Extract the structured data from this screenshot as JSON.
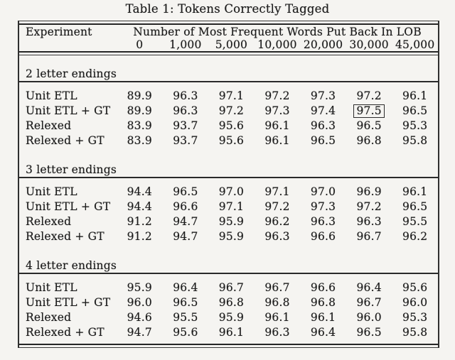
{
  "title": "Table 1: Tokens Correctly Tagged",
  "table": {
    "experiment_header": "Experiment",
    "span_header": "Number of Most Frequent Words Put Back In LOB",
    "columns": [
      "0",
      "1,000",
      "5,000",
      "10,000",
      "20,000",
      "30,000",
      "45,000"
    ],
    "highlight": {
      "description": "value enclosed in a box",
      "section_index": 0,
      "row_index": 1,
      "column_index": 5,
      "value": "97.5"
    },
    "sections": [
      {
        "label": "2 letter endings",
        "rows": [
          {
            "label": "Unit ETL",
            "values": [
              "89.9",
              "96.3",
              "97.1",
              "97.2",
              "97.3",
              "97.2",
              "96.1"
            ]
          },
          {
            "label": "Unit ETL + GT",
            "values": [
              "89.9",
              "96.3",
              "97.2",
              "97.3",
              "97.4",
              "97.5",
              "96.5"
            ]
          },
          {
            "label": "Relexed",
            "values": [
              "83.9",
              "93.7",
              "95.6",
              "96.1",
              "96.3",
              "96.5",
              "95.3"
            ]
          },
          {
            "label": "Relexed + GT",
            "values": [
              "83.9",
              "93.7",
              "95.6",
              "96.1",
              "96.5",
              "96.8",
              "95.8"
            ]
          }
        ]
      },
      {
        "label": "3 letter endings",
        "rows": [
          {
            "label": "Unit ETL",
            "values": [
              "94.4",
              "96.5",
              "97.0",
              "97.1",
              "97.0",
              "96.9",
              "96.1"
            ]
          },
          {
            "label": "Unit ETL + GT",
            "values": [
              "94.4",
              "96.6",
              "97.1",
              "97.2",
              "97.3",
              "97.2",
              "96.5"
            ]
          },
          {
            "label": "Relexed",
            "values": [
              "91.2",
              "94.7",
              "95.9",
              "96.2",
              "96.3",
              "96.3",
              "95.5"
            ]
          },
          {
            "label": "Relexed + GT",
            "values": [
              "91.2",
              "94.7",
              "95.9",
              "96.3",
              "96.6",
              "96.7",
              "96.2"
            ]
          }
        ]
      },
      {
        "label": "4 letter endings",
        "rows": [
          {
            "label": "Unit ETL",
            "values": [
              "95.9",
              "96.4",
              "96.7",
              "96.7",
              "96.6",
              "96.4",
              "95.6"
            ]
          },
          {
            "label": "Unit ETL + GT",
            "values": [
              "96.0",
              "96.5",
              "96.8",
              "96.8",
              "96.8",
              "96.7",
              "96.0"
            ]
          },
          {
            "label": "Relexed",
            "values": [
              "94.6",
              "95.5",
              "95.9",
              "96.1",
              "96.1",
              "96.0",
              "95.3"
            ]
          },
          {
            "label": "Relexed + GT",
            "values": [
              "94.7",
              "95.6",
              "96.1",
              "96.3",
              "96.4",
              "96.5",
              "95.8"
            ]
          }
        ]
      }
    ]
  }
}
